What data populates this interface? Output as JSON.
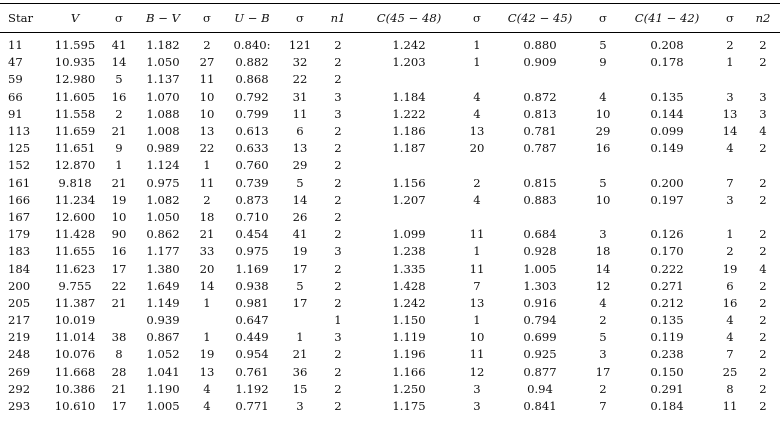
{
  "table": {
    "headers": [
      "Star",
      "V",
      "σ",
      "B − V",
      "σ",
      "U − B",
      "σ",
      "n1",
      "C(45 − 48)",
      "σ",
      "C(42 − 45)",
      "σ",
      "C(41 − 42)",
      "σ",
      "n2"
    ],
    "rows": [
      [
        "11",
        "11.595",
        "41",
        "1.182",
        "2",
        "0.840:",
        "121",
        "2",
        "1.242",
        "1",
        "0.880",
        "5",
        "0.208",
        "2",
        "2"
      ],
      [
        "47",
        "10.935",
        "14",
        "1.050",
        "27",
        "0.882",
        "32",
        "2",
        "1.203",
        "1",
        "0.909",
        "9",
        "0.178",
        "1",
        "2"
      ],
      [
        "59",
        "12.980",
        "5",
        "1.137",
        "11",
        "0.868",
        "22",
        "2",
        "",
        "",
        "",
        "",
        "",
        "",
        ""
      ],
      [
        "66",
        "11.605",
        "16",
        "1.070",
        "10",
        "0.792",
        "31",
        "3",
        "1.184",
        "4",
        "0.872",
        "4",
        "0.135",
        "3",
        "3"
      ],
      [
        "91",
        "11.558",
        "2",
        "1.088",
        "10",
        "0.799",
        "11",
        "3",
        "1.222",
        "4",
        "0.813",
        "10",
        "0.144",
        "13",
        "3"
      ],
      [
        "113",
        "11.659",
        "21",
        "1.008",
        "13",
        "0.613",
        "6",
        "2",
        "1.186",
        "13",
        "0.781",
        "29",
        "0.099",
        "14",
        "4"
      ],
      [
        "125",
        "11.651",
        "9",
        "0.989",
        "22",
        "0.633",
        "13",
        "2",
        "1.187",
        "20",
        "0.787",
        "16",
        "0.149",
        "4",
        "2"
      ],
      [
        "152",
        "12.870",
        "1",
        "1.124",
        "1",
        "0.760",
        "29",
        "2",
        "",
        "",
        "",
        "",
        "",
        "",
        ""
      ],
      [
        "161",
        "9.818",
        "21",
        "0.975",
        "11",
        "0.739",
        "5",
        "2",
        "1.156",
        "2",
        "0.815",
        "5",
        "0.200",
        "7",
        "2"
      ],
      [
        "166",
        "11.234",
        "19",
        "1.082",
        "2",
        "0.873",
        "14",
        "2",
        "1.207",
        "4",
        "0.883",
        "10",
        "0.197",
        "3",
        "2"
      ],
      [
        "167",
        "12.600",
        "10",
        "1.050",
        "18",
        "0.710",
        "26",
        "2",
        "",
        "",
        "",
        "",
        "",
        "",
        ""
      ],
      [
        "179",
        "11.428",
        "90",
        "0.862",
        "21",
        "0.454",
        "41",
        "2",
        "1.099",
        "11",
        "0.684",
        "3",
        "0.126",
        "1",
        "2"
      ],
      [
        "183",
        "11.655",
        "16",
        "1.177",
        "33",
        "0.975",
        "19",
        "3",
        "1.238",
        "1",
        "0.928",
        "18",
        "0.170",
        "2",
        "2"
      ],
      [
        "184",
        "11.623",
        "17",
        "1.380",
        "20",
        "1.169",
        "17",
        "2",
        "1.335",
        "11",
        "1.005",
        "14",
        "0.222",
        "19",
        "4"
      ],
      [
        "200",
        "9.755",
        "22",
        "1.649",
        "14",
        "0.938",
        "5",
        "2",
        "1.428",
        "7",
        "1.303",
        "12",
        "0.271",
        "6",
        "2"
      ],
      [
        "205",
        "11.387",
        "21",
        "1.149",
        "1",
        "0.981",
        "17",
        "2",
        "1.242",
        "13",
        "0.916",
        "4",
        "0.212",
        "16",
        "2"
      ],
      [
        "217",
        "10.019",
        "",
        "0.939",
        "",
        "0.647",
        "",
        "1",
        "1.150",
        "1",
        "0.794",
        "2",
        "0.135",
        "4",
        "2"
      ],
      [
        "219",
        "11.014",
        "38",
        "0.867",
        "1",
        "0.449",
        "1",
        "3",
        "1.119",
        "10",
        "0.699",
        "5",
        "0.119",
        "4",
        "2"
      ],
      [
        "248",
        "10.076",
        "8",
        "1.052",
        "19",
        "0.954",
        "21",
        "2",
        "1.196",
        "11",
        "0.925",
        "3",
        "0.238",
        "7",
        "2"
      ],
      [
        "269",
        "11.668",
        "28",
        "1.041",
        "13",
        "0.761",
        "36",
        "2",
        "1.166",
        "12",
        "0.877",
        "17",
        "0.150",
        "25",
        "2"
      ],
      [
        "292",
        "10.386",
        "21",
        "1.190",
        "4",
        "1.192",
        "15",
        "2",
        "1.250",
        "3",
        "0.94",
        "2",
        "0.291",
        "8",
        "2"
      ],
      [
        "293",
        "10.610",
        "17",
        "1.005",
        "4",
        "0.771",
        "3",
        "2",
        "1.175",
        "3",
        "0.841",
        "7",
        "0.184",
        "11",
        "2"
      ]
    ]
  }
}
